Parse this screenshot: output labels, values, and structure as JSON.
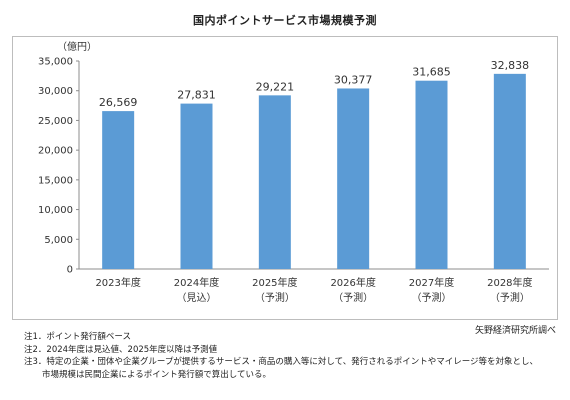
{
  "chart_data": {
    "type": "bar",
    "title": "国内ポイントサービス市場規模予測",
    "unit_label": "（億円）",
    "categories": [
      "2023年度",
      "2024年度",
      "2025年度",
      "2026年度",
      "2027年度",
      "2028年度"
    ],
    "sublabels": [
      "",
      "（見込）",
      "（予測）",
      "（予測）",
      "（予測）",
      "（予測）"
    ],
    "values": [
      26569,
      27831,
      29221,
      30377,
      31685,
      32838
    ],
    "value_labels": [
      "26,569",
      "27,831",
      "29,221",
      "30,377",
      "31,685",
      "32,838"
    ],
    "ylim": [
      0,
      35000
    ],
    "yticks": [
      "0",
      "5,000",
      "10,000",
      "15,000",
      "20,000",
      "25,000",
      "30,000",
      "35,000"
    ],
    "grid": false,
    "bar_color": "#5b9bd5"
  },
  "source": "矢野経済研究所調べ",
  "notes": [
    "注1．ポイント発行額ベース",
    "注2．2024年度は見込値、2025年度以降は予測値",
    "注3．特定の企業・団体や企業グループが提供するサービス・商品の購入等に対して、発行されるポイントやマイレージ等を対象とし、"
  ],
  "note_continuation": "市場規模は民間企業によるポイント発行額で算出している。"
}
